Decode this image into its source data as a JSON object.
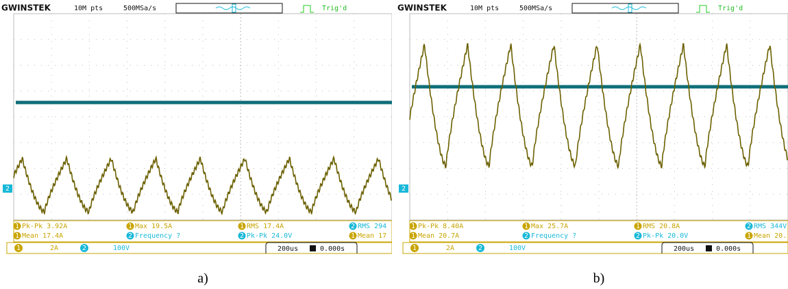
{
  "panels": [
    {
      "header": {
        "brand": "GWINSTEK",
        "points": "10M pts",
        "rate": "500MSa/s",
        "trigger": "Trig'd"
      },
      "marker": "2",
      "measurements": [
        {
          "channel": "1",
          "text": "Pk-Pk 3.92A"
        },
        {
          "channel": "1",
          "text": "Max 19.5A"
        },
        {
          "channel": "1",
          "text": "RMS 17.4A"
        },
        {
          "channel": "2",
          "text": "RMS 294"
        },
        {
          "channel": "1",
          "text": "Mean 17.4A"
        },
        {
          "channel": "2",
          "text": "Frequency ?"
        },
        {
          "channel": "2",
          "text": "Pk-Pk 24.0V"
        },
        {
          "channel": "1",
          "text": "Mean 17"
        }
      ],
      "status": {
        "ch1": "1",
        "ch1_scale": "2A",
        "ch2": "2",
        "ch2_scale": "100V",
        "timebase": "200us",
        "position": "0.000s"
      },
      "caption": "a)"
    },
    {
      "header": {
        "brand": "GWINSTEK",
        "points": "10M pts",
        "rate": "500MSa/s",
        "trigger": "Trig'd"
      },
      "marker": "2",
      "measurements": [
        {
          "channel": "1",
          "text": "Pk-Pk 8.40A"
        },
        {
          "channel": "1",
          "text": "Max 25.7A"
        },
        {
          "channel": "1",
          "text": "RMS 20.8A"
        },
        {
          "channel": "2",
          "text": "RMS 344V"
        },
        {
          "channel": "1",
          "text": "Mean 20.7A"
        },
        {
          "channel": "2",
          "text": "Frequency ?"
        },
        {
          "channel": "2",
          "text": "Pk-Pk 20.0V"
        },
        {
          "channel": "1",
          "text": "Mean 20."
        }
      ],
      "status": {
        "ch1": "1",
        "ch1_scale": "2A",
        "ch2": "2",
        "ch2_scale": "100V",
        "timebase": "200us",
        "position": "0.000s"
      },
      "caption": "b)"
    }
  ]
}
